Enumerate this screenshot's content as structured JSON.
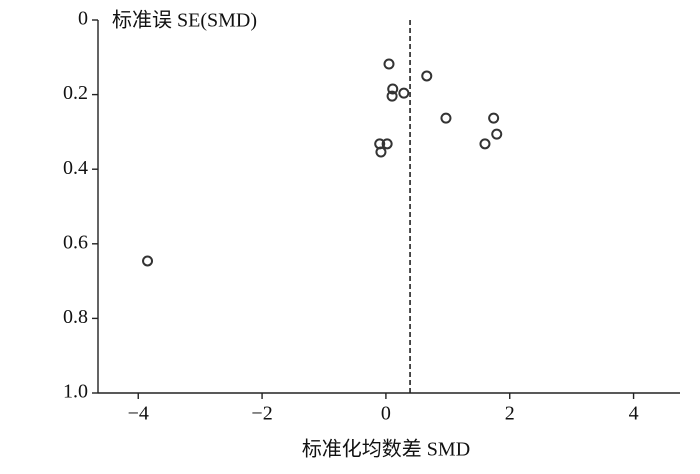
{
  "chart_data": {
    "type": "scatter",
    "y_label": "标准误  SE(SMD)",
    "x_label": "标准化均数差  SMD",
    "x": [
      0.05,
      0.66,
      0.11,
      0.29,
      0.1,
      0.97,
      1.74,
      1.79,
      1.6,
      0.02,
      -0.1,
      -0.08,
      -3.85
    ],
    "values": [
      0.118,
      0.15,
      0.185,
      0.196,
      0.204,
      0.263,
      0.263,
      0.306,
      0.332,
      0.332,
      0.332,
      0.354,
      0.646
    ],
    "color": "#333333",
    "reference_line": 0.39,
    "xlim": [
      -4.65,
      4.75
    ],
    "ylim": [
      1,
      0
    ],
    "xticks": [
      {
        "value": -4,
        "label": "−4"
      },
      {
        "value": -2,
        "label": "−2"
      },
      0,
      2,
      4
    ],
    "yticks": [
      0,
      0.2,
      0.4,
      0.6,
      0.8,
      {
        "value": 1,
        "label": "1.0"
      }
    ],
    "grid": false
  }
}
